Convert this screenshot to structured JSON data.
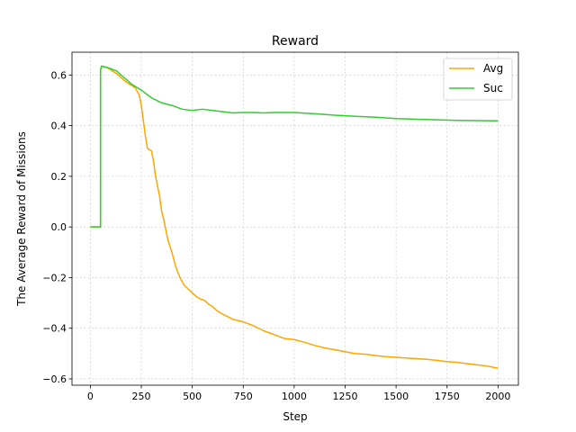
{
  "chart_data": {
    "type": "line",
    "title": "Reward",
    "xlabel": "Step",
    "ylabel": "The Average Reward of Missions",
    "xlim": [
      -90,
      2100
    ],
    "ylim": [
      -0.625,
      0.69
    ],
    "xticks": [
      0,
      250,
      500,
      750,
      1000,
      1250,
      1500,
      1750,
      2000
    ],
    "yticks": [
      -0.6,
      -0.4,
      -0.2,
      0.0,
      0.2,
      0.4,
      0.6
    ],
    "xtick_labels": [
      "0",
      "250",
      "500",
      "750",
      "1000",
      "1250",
      "1500",
      "1750",
      "2000"
    ],
    "ytick_labels": [
      "−0.6",
      "−0.4",
      "−0.2",
      "0.0",
      "0.2",
      "0.4",
      "0.6"
    ],
    "grid": true,
    "legend_position": "top-right",
    "series": [
      {
        "name": "Avg",
        "color": "#ffa500",
        "x": [
          0,
          50,
          50,
          55,
          80,
          100,
          130,
          150,
          180,
          200,
          220,
          240,
          250,
          260,
          270,
          280,
          300,
          310,
          320,
          340,
          350,
          360,
          380,
          400,
          420,
          440,
          460,
          480,
          500,
          520,
          540,
          560,
          580,
          600,
          620,
          650,
          700,
          750,
          800,
          850,
          900,
          950,
          1000,
          1050,
          1100,
          1150,
          1200,
          1250,
          1300,
          1350,
          1400,
          1450,
          1500,
          1550,
          1600,
          1650,
          1700,
          1750,
          1800,
          1850,
          1900,
          1950,
          2000
        ],
        "y": [
          0.0,
          0.0,
          0.62,
          0.635,
          0.63,
          0.62,
          0.605,
          0.59,
          0.57,
          0.56,
          0.55,
          0.52,
          0.48,
          0.42,
          0.36,
          0.31,
          0.3,
          0.26,
          0.2,
          0.12,
          0.06,
          0.03,
          -0.05,
          -0.1,
          -0.16,
          -0.2,
          -0.23,
          -0.245,
          -0.26,
          -0.275,
          -0.285,
          -0.29,
          -0.305,
          -0.315,
          -0.33,
          -0.345,
          -0.365,
          -0.375,
          -0.39,
          -0.41,
          -0.425,
          -0.44,
          -0.445,
          -0.455,
          -0.468,
          -0.478,
          -0.485,
          -0.493,
          -0.5,
          -0.503,
          -0.508,
          -0.512,
          -0.515,
          -0.518,
          -0.52,
          -0.523,
          -0.527,
          -0.532,
          -0.535,
          -0.54,
          -0.545,
          -0.55,
          -0.558
        ]
      },
      {
        "name": "Suc",
        "color": "#32cd32",
        "x": [
          0,
          50,
          50,
          55,
          80,
          100,
          130,
          150,
          180,
          200,
          220,
          250,
          300,
          350,
          400,
          450,
          500,
          550,
          600,
          650,
          700,
          750,
          800,
          850,
          900,
          950,
          1000,
          1100,
          1200,
          1300,
          1400,
          1500,
          1600,
          1700,
          1800,
          1900,
          2000
        ],
        "y": [
          0.0,
          0.0,
          0.62,
          0.635,
          0.63,
          0.625,
          0.615,
          0.6,
          0.58,
          0.565,
          0.555,
          0.54,
          0.51,
          0.49,
          0.48,
          0.465,
          0.46,
          0.465,
          0.46,
          0.455,
          0.45,
          0.452,
          0.452,
          0.45,
          0.452,
          0.452,
          0.452,
          0.447,
          0.441,
          0.437,
          0.433,
          0.428,
          0.425,
          0.423,
          0.421,
          0.42,
          0.419
        ]
      }
    ]
  }
}
